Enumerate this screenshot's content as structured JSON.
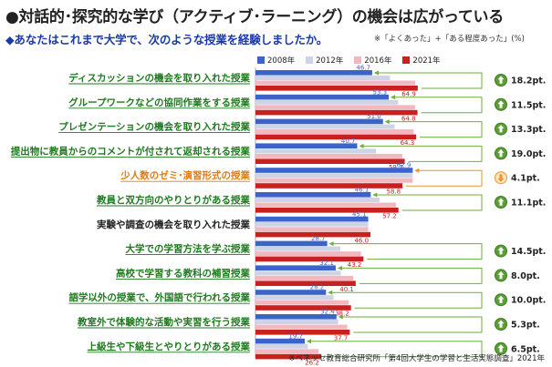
{
  "title": "●対話的･探究的な学び（アクティブ･ラーニング）の機会は広がっている",
  "question": "◆あなたはこれまで大学で、次のような授業を経験しましたか。",
  "note": "※「よくあった」+「ある程度あった」(%)",
  "source": "※ベネッセ教育総合研究所「第4回大学生の学習と生活実態調査」2021年",
  "colors": {
    "s2008": "#3c64c8",
    "s2012": "#cfd3e6",
    "s2016": "#f2b8c0",
    "s2021": "#c8201e",
    "label_green": "#1e7a1e",
    "label_orange": "#e07b12",
    "label_black": "#222222",
    "arrow_green": "#6fae3c",
    "arrow_orange": "#e8962a"
  },
  "chart_data": {
    "type": "bar",
    "orientation": "horizontal",
    "title": "対話的･探究的な学び（アクティブ･ラーニング）の機会は広がっている",
    "unit": "%",
    "xlim": [
      0,
      100
    ],
    "categories": [
      "ディスカッションの機会を取り入れた授業",
      "グループワークなどの協同作業をする授業",
      "プレゼンテーションの機会を取り入れた授業",
      "提出物に教員からのコメントが付されて返却される授業",
      "少人数のゼミ･演習形式の授業",
      "教員と双方向のやりとりがある授業",
      "実験や調査の機会を取り入れた授業",
      "大学での学習方法を学ぶ授業",
      "高校で学習する教科の補習授業",
      "語学以外の授業で、外国語で行われる授業",
      "教室外で体験的な活動や実習を行う授業",
      "上級生や下級生とやりとりがある授業"
    ],
    "label_style": [
      "green",
      "green",
      "green",
      "green",
      "orange",
      "green",
      "black",
      "green",
      "green",
      "green",
      "green",
      "green"
    ],
    "series": [
      {
        "name": "2008年",
        "values": [
          46.7,
          53.3,
          51.0,
          40.7,
          62.9,
          46.1,
          45.1,
          28.7,
          32.1,
          28.2,
          32.4,
          19.7
        ]
      },
      {
        "name": "2012年",
        "values": [
          null,
          null,
          null,
          null,
          null,
          null,
          null,
          null,
          null,
          null,
          null,
          null
        ]
      },
      {
        "name": "2016年",
        "values": [
          null,
          null,
          null,
          null,
          null,
          null,
          null,
          null,
          null,
          null,
          null,
          null
        ]
      },
      {
        "name": "2021年",
        "values": [
          64.9,
          64.8,
          64.3,
          59.7,
          58.8,
          57.2,
          46.0,
          43.2,
          40.1,
          38.2,
          37.7,
          26.2
        ]
      }
    ],
    "changes": [
      "18.2pt.",
      "11.5pt.",
      "13.3pt.",
      "19.0pt.",
      "4.1pt.",
      "11.1pt.",
      null,
      "14.5pt.",
      "8.0pt.",
      "10.0pt.",
      "5.3pt.",
      "6.5pt."
    ],
    "change_direction": [
      "up",
      "up",
      "up",
      "up",
      "down",
      "up",
      null,
      "up",
      "up",
      "up",
      "up",
      "up"
    ]
  }
}
